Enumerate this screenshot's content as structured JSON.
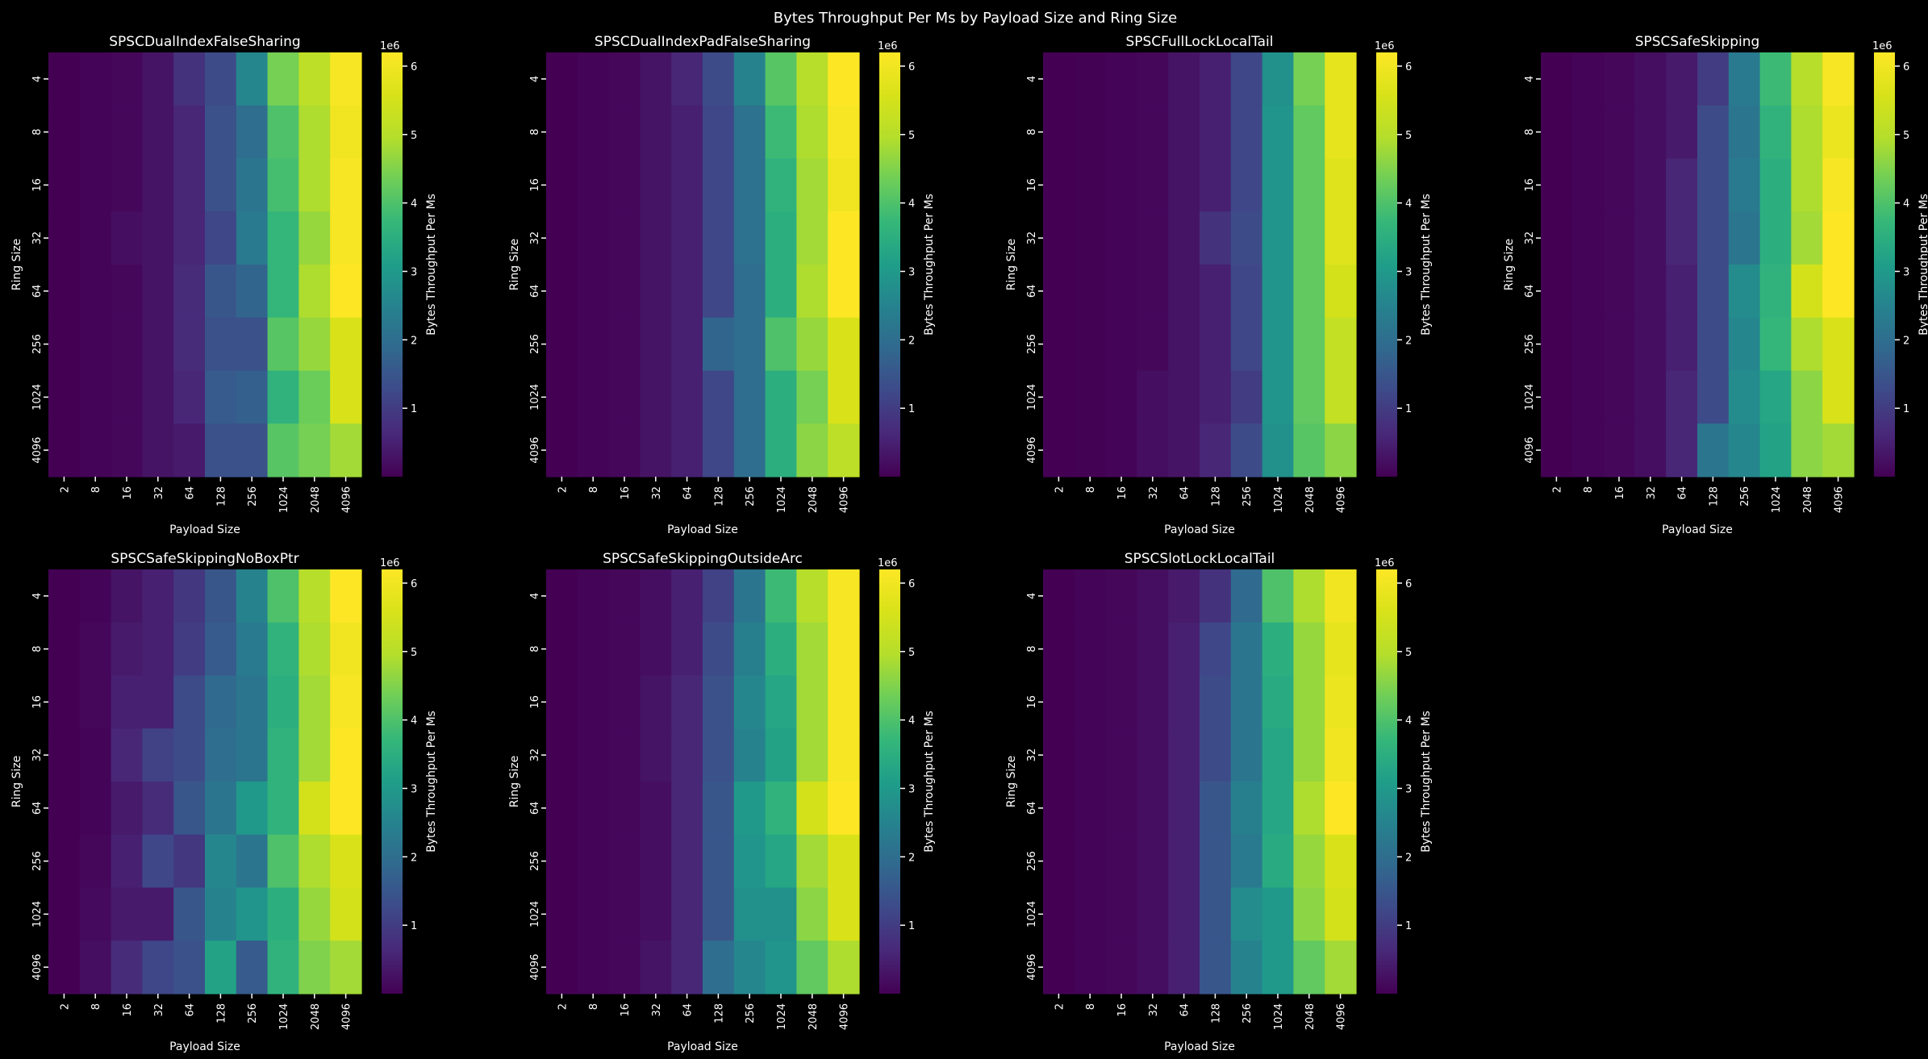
{
  "figure": {
    "suptitle": "Bytes Throughput Per Ms by Payload Size and Ring Size"
  },
  "chart_data": {
    "type": "heatmap",
    "colormap": "viridis",
    "value_range": [
      0,
      6200000
    ],
    "colorbar": {
      "label": "Bytes Throughput Per Ms",
      "multiplier_label": "1e6",
      "ticks": [
        1,
        2,
        3,
        4,
        5,
        6
      ],
      "tick_scale": 1000000
    },
    "xlabel": "Payload Size",
    "ylabel": "Ring Size",
    "payload_sizes": [
      "2",
      "8",
      "16",
      "32",
      "64",
      "128",
      "256",
      "1024",
      "2048",
      "4096"
    ],
    "ring_sizes": [
      "4",
      "8",
      "16",
      "32",
      "64",
      "256",
      "1024",
      "4096"
    ],
    "panels": [
      {
        "title": "SPSCDualIndexFalseSharing",
        "values": [
          [
            0.0,
            0.05,
            0.1,
            0.3,
            0.8,
            1.3,
            2.6,
            4.4,
            5.1,
            6.1
          ],
          [
            0.0,
            0.05,
            0.1,
            0.3,
            0.6,
            1.4,
            2.0,
            4.0,
            4.9,
            6.0
          ],
          [
            0.0,
            0.05,
            0.1,
            0.3,
            0.6,
            1.4,
            2.2,
            3.9,
            4.9,
            6.1
          ],
          [
            0.0,
            0.05,
            0.2,
            0.3,
            0.6,
            1.2,
            2.3,
            3.7,
            4.7,
            6.1
          ],
          [
            0.0,
            0.05,
            0.1,
            0.3,
            0.7,
            1.5,
            1.8,
            3.7,
            4.9,
            6.2
          ],
          [
            0.0,
            0.05,
            0.1,
            0.3,
            0.7,
            1.4,
            1.4,
            4.1,
            4.7,
            5.6
          ],
          [
            0.0,
            0.05,
            0.1,
            0.3,
            0.6,
            1.6,
            1.7,
            3.6,
            4.3,
            5.6
          ],
          [
            0.0,
            0.05,
            0.1,
            0.3,
            0.4,
            1.4,
            1.4,
            4.1,
            4.4,
            4.8
          ]
        ]
      },
      {
        "title": "SPSCDualIndexPadFalseSharing",
        "values": [
          [
            0.0,
            0.05,
            0.1,
            0.3,
            0.6,
            1.3,
            2.5,
            4.1,
            5.0,
            6.2
          ],
          [
            0.0,
            0.05,
            0.1,
            0.3,
            0.5,
            1.2,
            2.1,
            3.8,
            4.9,
            6.1
          ],
          [
            0.0,
            0.05,
            0.1,
            0.3,
            0.5,
            1.2,
            2.1,
            3.6,
            4.8,
            6.0
          ],
          [
            0.0,
            0.05,
            0.1,
            0.3,
            0.5,
            1.2,
            2.1,
            3.5,
            4.8,
            6.2
          ],
          [
            0.0,
            0.05,
            0.1,
            0.3,
            0.5,
            1.2,
            2.0,
            3.5,
            4.9,
            6.2
          ],
          [
            0.0,
            0.05,
            0.1,
            0.3,
            0.5,
            1.8,
            2.0,
            4.0,
            4.7,
            5.6
          ],
          [
            0.0,
            0.05,
            0.1,
            0.3,
            0.5,
            1.2,
            2.0,
            3.5,
            4.4,
            5.6
          ],
          [
            0.0,
            0.05,
            0.1,
            0.3,
            0.5,
            1.2,
            2.0,
            3.5,
            4.6,
            5.1
          ]
        ]
      },
      {
        "title": "SPSCFullLockLocalTail",
        "values": [
          [
            0.0,
            0.02,
            0.05,
            0.1,
            0.3,
            0.5,
            1.2,
            2.8,
            4.4,
            5.8
          ],
          [
            0.0,
            0.02,
            0.05,
            0.1,
            0.3,
            0.5,
            1.2,
            2.9,
            4.2,
            5.8
          ],
          [
            0.0,
            0.02,
            0.05,
            0.1,
            0.3,
            0.5,
            1.2,
            2.9,
            4.2,
            5.7
          ],
          [
            0.0,
            0.02,
            0.05,
            0.1,
            0.3,
            0.8,
            1.3,
            2.9,
            4.2,
            5.7
          ],
          [
            0.0,
            0.02,
            0.05,
            0.1,
            0.3,
            0.5,
            1.2,
            2.9,
            4.2,
            5.5
          ],
          [
            0.0,
            0.02,
            0.05,
            0.1,
            0.3,
            0.5,
            1.2,
            2.9,
            4.2,
            5.2
          ],
          [
            0.0,
            0.02,
            0.05,
            0.2,
            0.3,
            0.5,
            1.0,
            2.9,
            4.2,
            5.2
          ],
          [
            0.0,
            0.02,
            0.05,
            0.2,
            0.3,
            0.6,
            1.3,
            2.8,
            4.1,
            4.6
          ]
        ]
      },
      {
        "title": "SPSCSafeSkipping",
        "values": [
          [
            0.0,
            0.05,
            0.1,
            0.2,
            0.4,
            1.0,
            2.3,
            3.8,
            5.0,
            6.1
          ],
          [
            0.0,
            0.05,
            0.1,
            0.2,
            0.4,
            1.3,
            2.2,
            3.6,
            4.9,
            5.9
          ],
          [
            0.0,
            0.05,
            0.1,
            0.2,
            0.6,
            1.3,
            2.3,
            3.5,
            4.9,
            6.1
          ],
          [
            0.0,
            0.05,
            0.1,
            0.2,
            0.6,
            1.3,
            2.2,
            3.5,
            4.8,
            6.2
          ],
          [
            0.0,
            0.05,
            0.1,
            0.2,
            0.5,
            1.3,
            2.7,
            3.6,
            5.5,
            6.2
          ],
          [
            0.0,
            0.05,
            0.1,
            0.2,
            0.5,
            1.3,
            2.6,
            3.7,
            4.9,
            5.6
          ],
          [
            0.0,
            0.05,
            0.1,
            0.2,
            0.6,
            1.3,
            2.7,
            3.3,
            4.6,
            5.6
          ],
          [
            0.0,
            0.05,
            0.1,
            0.2,
            0.6,
            2.2,
            2.6,
            3.2,
            4.6,
            4.8
          ]
        ]
      },
      {
        "title": "SPSCSafeSkippingNoBoxPtr",
        "values": [
          [
            0.0,
            0.05,
            0.3,
            0.5,
            0.9,
            1.5,
            2.5,
            4.0,
            5.0,
            6.2
          ],
          [
            0.0,
            0.1,
            0.4,
            0.5,
            1.0,
            1.6,
            2.3,
            3.6,
            4.9,
            6.0
          ],
          [
            0.0,
            0.1,
            0.5,
            0.5,
            1.3,
            1.9,
            2.2,
            3.5,
            4.8,
            6.1
          ],
          [
            0.0,
            0.05,
            0.6,
            1.1,
            1.3,
            2.0,
            2.2,
            3.6,
            4.8,
            6.2
          ],
          [
            0.0,
            0.05,
            0.4,
            0.7,
            1.5,
            2.2,
            3.0,
            3.6,
            5.5,
            6.2
          ],
          [
            0.0,
            0.1,
            0.5,
            1.2,
            0.9,
            2.6,
            2.2,
            4.0,
            4.9,
            5.6
          ],
          [
            0.0,
            0.15,
            0.4,
            0.4,
            1.5,
            2.5,
            2.9,
            3.5,
            4.7,
            5.5
          ],
          [
            0.0,
            0.2,
            0.7,
            1.2,
            1.4,
            3.2,
            1.6,
            3.6,
            4.5,
            4.8
          ]
        ]
      },
      {
        "title": "SPSCSafeSkippingOutsideArc",
        "values": [
          [
            0.0,
            0.05,
            0.1,
            0.2,
            0.5,
            1.1,
            2.2,
            3.8,
            5.0,
            6.1
          ],
          [
            0.0,
            0.05,
            0.1,
            0.2,
            0.5,
            1.3,
            2.4,
            3.5,
            4.8,
            6.1
          ],
          [
            0.0,
            0.05,
            0.1,
            0.3,
            0.6,
            1.4,
            2.6,
            3.3,
            4.8,
            6.1
          ],
          [
            0.0,
            0.05,
            0.1,
            0.3,
            0.6,
            1.4,
            2.5,
            3.2,
            4.8,
            6.1
          ],
          [
            0.0,
            0.05,
            0.1,
            0.2,
            0.6,
            1.5,
            3.0,
            3.6,
            5.5,
            6.2
          ],
          [
            0.0,
            0.05,
            0.1,
            0.2,
            0.6,
            1.5,
            2.9,
            3.3,
            4.8,
            5.6
          ],
          [
            0.0,
            0.05,
            0.1,
            0.2,
            0.6,
            1.5,
            2.8,
            2.8,
            4.6,
            5.6
          ],
          [
            0.0,
            0.05,
            0.1,
            0.3,
            0.6,
            2.0,
            2.6,
            2.9,
            4.2,
            4.9
          ]
        ]
      },
      {
        "title": "SPSCSlotLockLocalTail",
        "values": [
          [
            0.0,
            0.05,
            0.1,
            0.2,
            0.4,
            0.8,
            1.9,
            4.0,
            4.9,
            6.0
          ],
          [
            0.0,
            0.05,
            0.1,
            0.2,
            0.5,
            1.2,
            2.2,
            3.5,
            4.7,
            5.8
          ],
          [
            0.0,
            0.05,
            0.1,
            0.2,
            0.5,
            1.3,
            2.2,
            3.4,
            4.7,
            5.9
          ],
          [
            0.0,
            0.05,
            0.1,
            0.2,
            0.5,
            1.3,
            2.2,
            3.3,
            4.7,
            6.0
          ],
          [
            0.0,
            0.05,
            0.1,
            0.2,
            0.5,
            1.5,
            2.4,
            3.3,
            4.9,
            6.2
          ],
          [
            0.0,
            0.05,
            0.1,
            0.2,
            0.5,
            1.5,
            2.3,
            3.4,
            4.7,
            5.6
          ],
          [
            0.0,
            0.05,
            0.1,
            0.2,
            0.5,
            1.5,
            2.7,
            3.0,
            4.6,
            5.5
          ],
          [
            0.0,
            0.05,
            0.1,
            0.2,
            0.5,
            1.5,
            2.5,
            3.0,
            4.2,
            4.8
          ]
        ]
      }
    ]
  }
}
